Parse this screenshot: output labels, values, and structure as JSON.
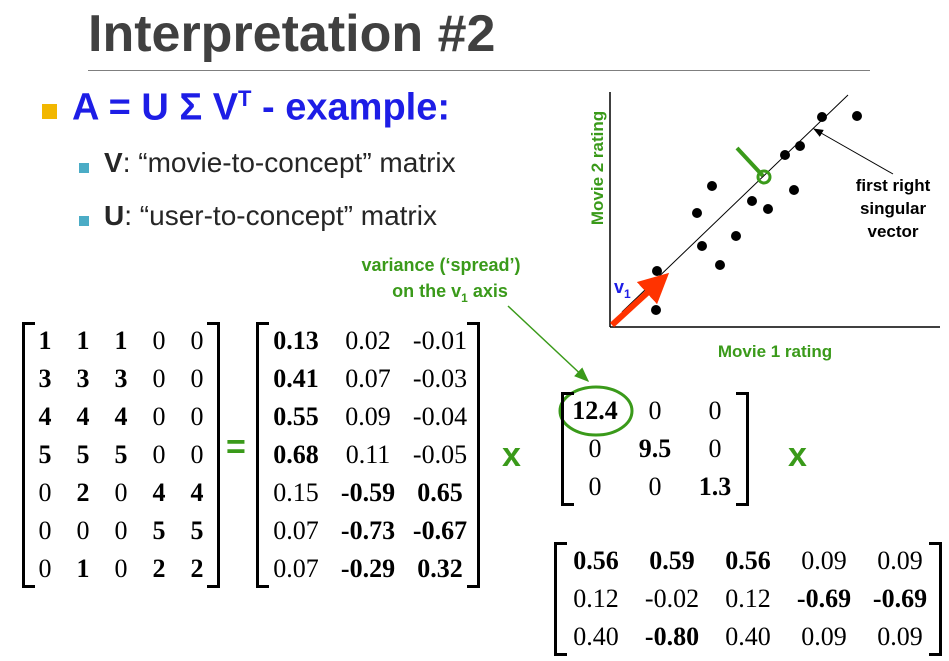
{
  "slide": {
    "title": "Interpretation #2",
    "bullet_main": "A = U Σ V",
    "bullet_main_sup": "T",
    "bullet_main_suffix": " - example:",
    "sub_bullets": [
      {
        "term": "V",
        "text": ": “movie-to-concept” matrix"
      },
      {
        "term": "U",
        "text": ": “user-to-concept” matrix"
      }
    ],
    "variance_label_line1": "variance (‘spread’)",
    "variance_label_line2": "on the v",
    "variance_label_sub": "1",
    "variance_label_suffix": " axis",
    "equals": "=",
    "times1": "x",
    "times2": "x"
  },
  "scatter": {
    "ylabel": "Movie 2 rating",
    "xlabel": "Movie 1 rating",
    "vector_label": "v",
    "vector_sub": "1",
    "annotation": [
      "first right",
      "singular",
      "vector"
    ]
  },
  "matrices": {
    "A": [
      [
        {
          "v": "1",
          "b": true
        },
        {
          "v": "1",
          "b": true
        },
        {
          "v": "1",
          "b": true
        },
        {
          "v": "0",
          "b": false
        },
        {
          "v": "0",
          "b": false
        }
      ],
      [
        {
          "v": "3",
          "b": true
        },
        {
          "v": "3",
          "b": true
        },
        {
          "v": "3",
          "b": true
        },
        {
          "v": "0",
          "b": false
        },
        {
          "v": "0",
          "b": false
        }
      ],
      [
        {
          "v": "4",
          "b": true
        },
        {
          "v": "4",
          "b": true
        },
        {
          "v": "4",
          "b": true
        },
        {
          "v": "0",
          "b": false
        },
        {
          "v": "0",
          "b": false
        }
      ],
      [
        {
          "v": "5",
          "b": true
        },
        {
          "v": "5",
          "b": true
        },
        {
          "v": "5",
          "b": true
        },
        {
          "v": "0",
          "b": false
        },
        {
          "v": "0",
          "b": false
        }
      ],
      [
        {
          "v": "0",
          "b": false
        },
        {
          "v": "2",
          "b": true
        },
        {
          "v": "0",
          "b": false
        },
        {
          "v": "4",
          "b": true
        },
        {
          "v": "4",
          "b": true
        }
      ],
      [
        {
          "v": "0",
          "b": false
        },
        {
          "v": "0",
          "b": false
        },
        {
          "v": "0",
          "b": false
        },
        {
          "v": "5",
          "b": true
        },
        {
          "v": "5",
          "b": true
        }
      ],
      [
        {
          "v": "0",
          "b": false
        },
        {
          "v": "1",
          "b": true
        },
        {
          "v": "0",
          "b": false
        },
        {
          "v": "2",
          "b": true
        },
        {
          "v": "2",
          "b": true
        }
      ]
    ],
    "U": [
      [
        {
          "v": "0.13",
          "b": true
        },
        {
          "v": "0.02",
          "b": false
        },
        {
          "v": "-0.01",
          "b": false
        }
      ],
      [
        {
          "v": "0.41",
          "b": true
        },
        {
          "v": "0.07",
          "b": false
        },
        {
          "v": "-0.03",
          "b": false
        }
      ],
      [
        {
          "v": "0.55",
          "b": true
        },
        {
          "v": "0.09",
          "b": false
        },
        {
          "v": "-0.04",
          "b": false
        }
      ],
      [
        {
          "v": "0.68",
          "b": true
        },
        {
          "v": "0.11",
          "b": false
        },
        {
          "v": "-0.05",
          "b": false
        }
      ],
      [
        {
          "v": "0.15",
          "b": false
        },
        {
          "v": "-0.59",
          "b": true
        },
        {
          "v": "0.65",
          "b": true
        }
      ],
      [
        {
          "v": "0.07",
          "b": false
        },
        {
          "v": "-0.73",
          "b": true
        },
        {
          "v": "-0.67",
          "b": true
        }
      ],
      [
        {
          "v": "0.07",
          "b": false
        },
        {
          "v": "-0.29",
          "b": true
        },
        {
          "v": "0.32",
          "b": true
        }
      ]
    ],
    "S": [
      [
        {
          "v": "12.4",
          "b": true
        },
        {
          "v": "0",
          "b": false
        },
        {
          "v": "0",
          "b": false
        }
      ],
      [
        {
          "v": "0",
          "b": false
        },
        {
          "v": "9.5",
          "b": true
        },
        {
          "v": "0",
          "b": false
        }
      ],
      [
        {
          "v": "0",
          "b": false
        },
        {
          "v": "0",
          "b": false
        },
        {
          "v": "1.3",
          "b": true
        }
      ]
    ],
    "VT": [
      [
        {
          "v": "0.56",
          "b": true
        },
        {
          "v": "0.59",
          "b": true
        },
        {
          "v": "0.56",
          "b": true
        },
        {
          "v": "0.09",
          "b": false
        },
        {
          "v": "0.09",
          "b": false
        }
      ],
      [
        {
          "v": "0.12",
          "b": false
        },
        {
          "v": "-0.02",
          "b": false
        },
        {
          "v": "0.12",
          "b": false
        },
        {
          "v": "-0.69",
          "b": true
        },
        {
          "v": "-0.69",
          "b": true
        }
      ],
      [
        {
          "v": "0.40",
          "b": false
        },
        {
          "v": "-0.80",
          "b": true
        },
        {
          "v": "0.40",
          "b": false
        },
        {
          "v": "0.09",
          "b": false
        },
        {
          "v": "0.09",
          "b": false
        }
      ]
    ]
  },
  "colors": {
    "title": "#404040",
    "bullet_main": "#1d1de6",
    "green": "#3a9a1a",
    "arrow": "#ff3300",
    "bullet_square": "#f2b700",
    "sub_square": "#4bacc6"
  }
}
